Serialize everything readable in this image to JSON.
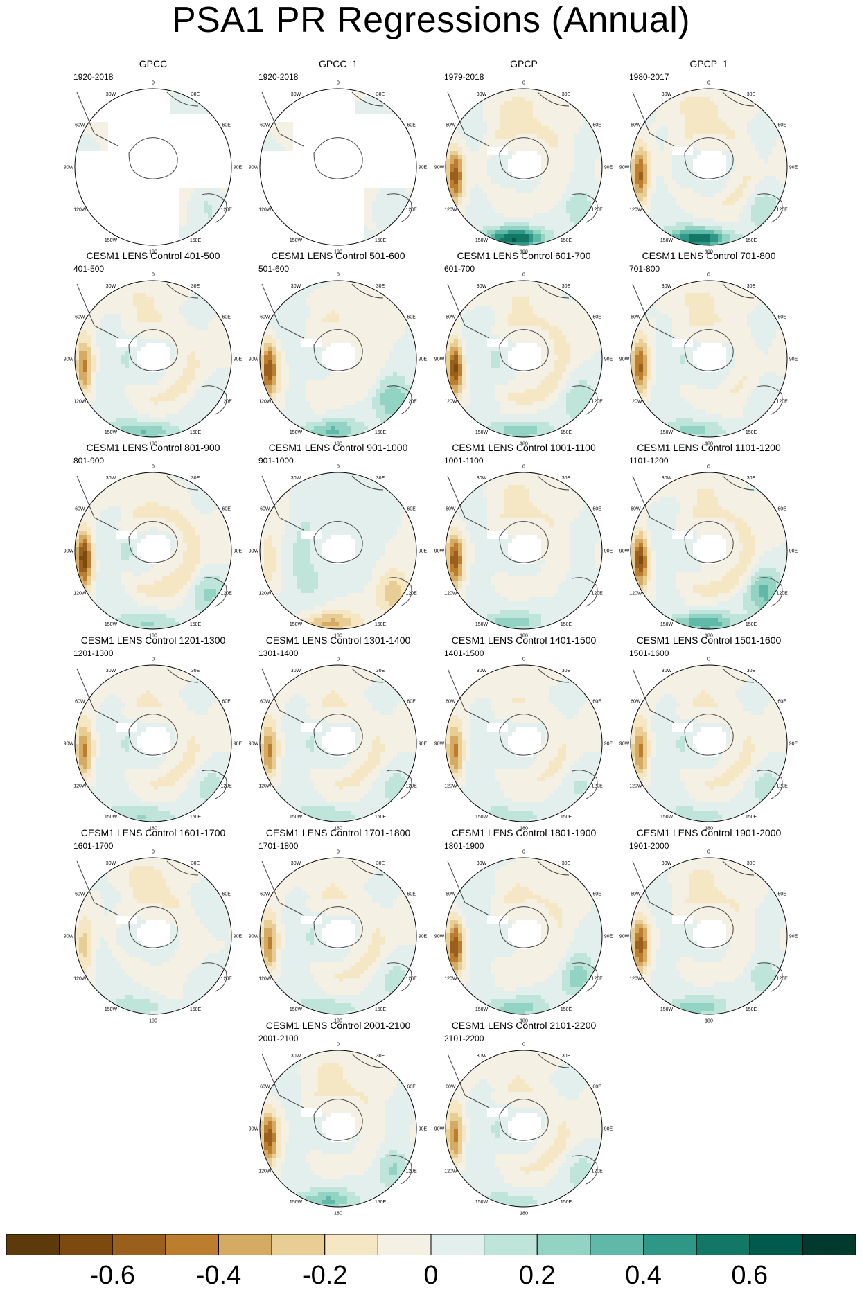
{
  "title": "PSA1 PR Regressions (Annual)",
  "longitude_labels": [
    "0",
    "30E",
    "60E",
    "90E",
    "120E",
    "150E",
    "180",
    "150W",
    "120W",
    "90W",
    "60W",
    "30W"
  ],
  "panels": [
    {
      "name": "GPCC",
      "period": "1920-2018",
      "coverage": "partial",
      "pattern": [
        0.08,
        0.04,
        -0.05,
        0.3,
        0.12,
        0.15
      ]
    },
    {
      "name": "GPCC_1",
      "period": "1920-2018",
      "coverage": "partial",
      "pattern": [
        0.06,
        0.03,
        -0.04,
        0.25,
        0.1,
        0.12
      ]
    },
    {
      "name": "GPCP",
      "period": "1979-2018",
      "coverage": "full",
      "pattern": [
        -0.55,
        0.12,
        -0.12,
        0.6,
        0.2,
        -0.15
      ]
    },
    {
      "name": "GPCP_1",
      "period": "1980-2017",
      "coverage": "full",
      "pattern": [
        -0.5,
        0.12,
        -0.12,
        0.6,
        0.22,
        -0.15
      ]
    },
    {
      "name": "CESM1 LENS Control 401-500",
      "period": "401-500",
      "coverage": "full",
      "pattern": [
        -0.45,
        0.15,
        -0.1,
        0.35,
        0.1,
        -0.12
      ]
    },
    {
      "name": "CESM1 LENS Control 501-600",
      "period": "501-600",
      "coverage": "full",
      "pattern": [
        -0.6,
        0.12,
        -0.08,
        0.3,
        0.3,
        -0.1
      ]
    },
    {
      "name": "CESM1 LENS Control 601-700",
      "period": "601-700",
      "coverage": "full",
      "pattern": [
        -0.65,
        0.18,
        -0.12,
        0.28,
        0.15,
        -0.15
      ]
    },
    {
      "name": "CESM1 LENS Control 701-800",
      "period": "701-800",
      "coverage": "full",
      "pattern": [
        -0.5,
        0.15,
        -0.1,
        0.25,
        0.12,
        -0.12
      ]
    },
    {
      "name": "CESM1 LENS Control 801-900",
      "period": "801-900",
      "coverage": "full",
      "pattern": [
        -0.7,
        0.18,
        -0.15,
        0.25,
        0.2,
        -0.1
      ]
    },
    {
      "name": "CESM1 LENS Control 901-1000",
      "period": "901-1000",
      "coverage": "full",
      "pattern": [
        -0.2,
        0.1,
        0.05,
        -0.3,
        -0.25,
        0.1
      ]
    },
    {
      "name": "CESM1 LENS Control 1001-1100",
      "period": "1001-1100",
      "coverage": "full",
      "pattern": [
        -0.55,
        0.15,
        -0.1,
        0.25,
        0.12,
        -0.12
      ]
    },
    {
      "name": "CESM1 LENS Control 1101-1200",
      "period": "1101-1200",
      "coverage": "full",
      "pattern": [
        -0.65,
        0.15,
        -0.12,
        0.4,
        0.3,
        -0.15
      ]
    },
    {
      "name": "CESM1 LENS Control 1201-1300",
      "period": "1201-1300",
      "coverage": "full",
      "pattern": [
        -0.45,
        0.15,
        -0.1,
        0.25,
        0.15,
        -0.1
      ]
    },
    {
      "name": "CESM1 LENS Control 1301-1400",
      "period": "1301-1400",
      "coverage": "full",
      "pattern": [
        -0.45,
        0.15,
        -0.1,
        0.22,
        0.15,
        -0.1
      ]
    },
    {
      "name": "CESM1 LENS Control 1401-1500",
      "period": "1401-1500",
      "coverage": "full",
      "pattern": [
        -0.45,
        0.12,
        -0.08,
        0.2,
        0.12,
        -0.1
      ]
    },
    {
      "name": "CESM1 LENS Control 1501-1600",
      "period": "1501-1600",
      "coverage": "full",
      "pattern": [
        -0.45,
        0.15,
        -0.1,
        0.2,
        0.15,
        -0.1
      ]
    },
    {
      "name": "CESM1 LENS Control 1601-1700",
      "period": "1601-1700",
      "coverage": "full",
      "pattern": [
        -0.25,
        0.12,
        -0.1,
        0.15,
        0.1,
        -0.15
      ]
    },
    {
      "name": "CESM1 LENS Control 1701-1800",
      "period": "1701-1800",
      "coverage": "full",
      "pattern": [
        -0.45,
        0.15,
        -0.1,
        0.22,
        0.15,
        -0.1
      ]
    },
    {
      "name": "CESM1 LENS Control 1801-1900",
      "period": "1801-1900",
      "coverage": "full",
      "pattern": [
        -0.6,
        0.15,
        -0.1,
        0.25,
        0.25,
        -0.1
      ]
    },
    {
      "name": "CESM1 LENS Control 1901-2000",
      "period": "1901-2000",
      "coverage": "full",
      "pattern": [
        -0.55,
        0.15,
        -0.1,
        0.25,
        0.2,
        -0.12
      ]
    },
    {
      "name": "CESM1 LENS Control 2001-2100",
      "period": "2001-2100",
      "coverage": "full",
      "pattern": [
        -0.55,
        0.15,
        -0.1,
        0.3,
        0.25,
        -0.12
      ]
    },
    {
      "name": "CESM1 LENS Control 2101-2200",
      "period": "2101-2200",
      "coverage": "full",
      "pattern": [
        -0.45,
        0.15,
        -0.1,
        0.2,
        0.15,
        -0.1
      ]
    }
  ],
  "colorbar": {
    "colors": [
      "#5d3a0c",
      "#7c4a0f",
      "#9a5f1c",
      "#bd7d2e",
      "#d5ab63",
      "#e8cd95",
      "#f5e6c4",
      "#f4f0e4",
      "#e3efec",
      "#bfe4da",
      "#92d3c4",
      "#5fb8a8",
      "#2f9786",
      "#137766",
      "#005a4b",
      "#003a2f"
    ],
    "boundaries": [
      -0.7,
      -0.6,
      -0.5,
      -0.4,
      -0.3,
      -0.2,
      -0.1,
      0,
      0.1,
      0.2,
      0.3,
      0.4,
      0.5,
      0.6,
      0.7
    ],
    "labels": [
      {
        "value": -0.6,
        "text": "-0.6"
      },
      {
        "value": -0.4,
        "text": "-0.4"
      },
      {
        "value": -0.2,
        "text": "-0.2"
      },
      {
        "value": 0,
        "text": "0"
      },
      {
        "value": 0.2,
        "text": "0.2"
      },
      {
        "value": 0.4,
        "text": "0.4"
      },
      {
        "value": 0.6,
        "text": "0.6"
      }
    ]
  }
}
